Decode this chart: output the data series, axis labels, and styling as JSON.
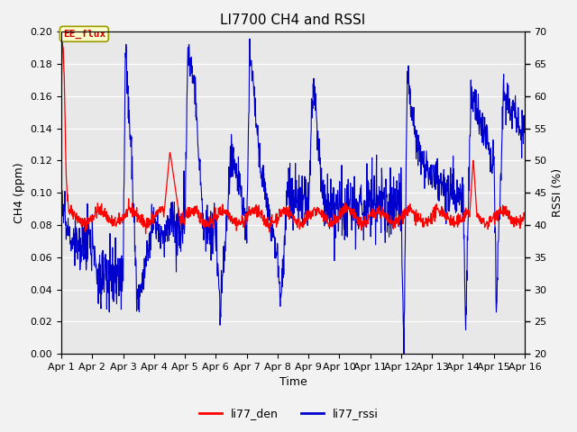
{
  "title": "LI7700 CH4 and RSSI",
  "xlabel": "Time",
  "ylabel_left": "CH4 (ppm)",
  "ylabel_right": "RSSI (%)",
  "ylim_left": [
    0.0,
    0.2
  ],
  "ylim_right": [
    20,
    70
  ],
  "yticks_left": [
    0.0,
    0.02,
    0.04,
    0.06,
    0.08,
    0.1,
    0.12,
    0.14,
    0.16,
    0.18,
    0.2
  ],
  "yticks_right": [
    20,
    25,
    30,
    35,
    40,
    45,
    50,
    55,
    60,
    65,
    70
  ],
  "xtick_labels": [
    "Apr 1",
    "Apr 2",
    "Apr 3",
    "Apr 4",
    "Apr 5",
    "Apr 6",
    "Apr 7",
    "Apr 8",
    "Apr 9",
    "Apr 10",
    "Apr 11",
    "Apr 12",
    "Apr 13",
    "Apr 14",
    "Apr 15",
    "Apr 16"
  ],
  "color_ch4": "#ff0000",
  "color_rssi": "#0000cc",
  "legend_labels": [
    "li77_den",
    "li77_rssi"
  ],
  "annotation_text": "EE_flux",
  "annotation_bg": "#ffffcc",
  "annotation_border": "#999900",
  "plot_bg": "#e8e8e8",
  "fig_bg": "#f2f2f2",
  "title_fontsize": 11,
  "axis_label_fontsize": 9,
  "tick_label_fontsize": 8,
  "legend_fontsize": 9
}
